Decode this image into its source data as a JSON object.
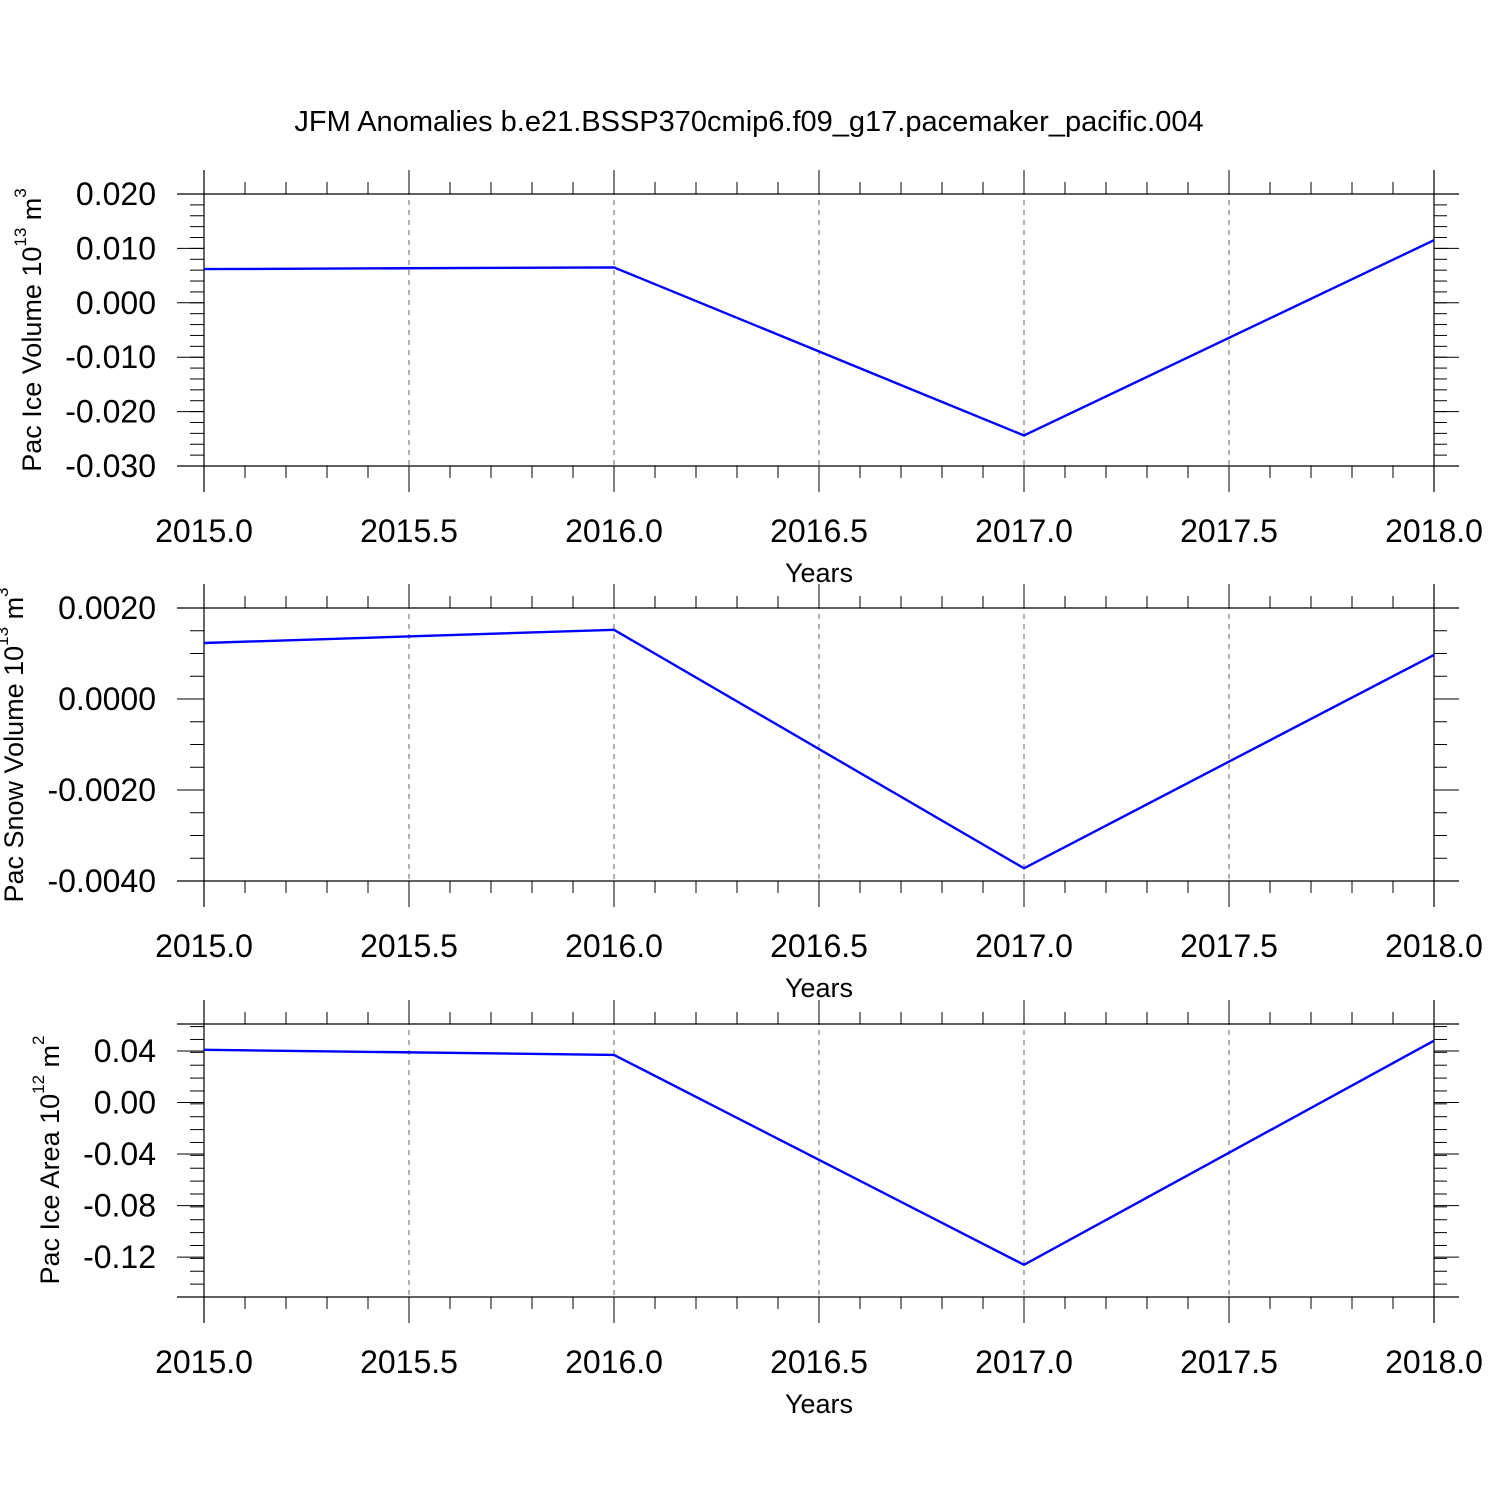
{
  "title": "JFM Anomalies b.e21.BSSP370cmip6.f09_g17.pacemaker_pacific.004",
  "colors": {
    "series": "#0000ff",
    "axis": "#000000",
    "grid": "#666666"
  },
  "chart_data": [
    {
      "type": "line",
      "xlabel": "Years",
      "ylabel": {
        "base": "Pac Ice Volume 10",
        "exp": "13",
        "unit": " m",
        "unit_exp": "3"
      },
      "x": [
        2015.0,
        2016.0,
        2017.0,
        2018.0
      ],
      "series": [
        {
          "values": [
            0.0062,
            0.0065,
            -0.0244,
            0.0115
          ]
        }
      ],
      "xlim": [
        2015.0,
        2018.0
      ],
      "ylim": [
        -0.03,
        0.02
      ],
      "xticks": [
        2015.0,
        2015.5,
        2016.0,
        2016.5,
        2017.0,
        2017.5,
        2018.0
      ],
      "xtick_labels": [
        "2015.0",
        "2015.5",
        "2016.0",
        "2016.5",
        "2017.0",
        "2017.5",
        "2018.0"
      ],
      "yticks": [
        0.02,
        0.01,
        0.0,
        -0.01,
        -0.02,
        -0.03
      ],
      "ytick_labels": [
        "0.020",
        "0.010",
        "0.000",
        "-0.010",
        "-0.020",
        "-0.030"
      ],
      "grid": "vertical dashed at x ticks"
    },
    {
      "type": "line",
      "xlabel": "Years",
      "ylabel": {
        "base": "Pac Snow Volume 10",
        "exp": "13",
        "unit": " m",
        "unit_exp": "3"
      },
      "x": [
        2015.0,
        2016.0,
        2017.0,
        2018.0
      ],
      "series": [
        {
          "values": [
            0.00123,
            0.00152,
            -0.00372,
            0.00097
          ]
        }
      ],
      "xlim": [
        2015.0,
        2018.0
      ],
      "ylim": [
        -0.004,
        0.002
      ],
      "xticks": [
        2015.0,
        2015.5,
        2016.0,
        2016.5,
        2017.0,
        2017.5,
        2018.0
      ],
      "xtick_labels": [
        "2015.0",
        "2015.5",
        "2016.0",
        "2016.5",
        "2017.0",
        "2017.5",
        "2018.0"
      ],
      "yticks": [
        0.002,
        0.0,
        -0.002,
        -0.004
      ],
      "ytick_labels": [
        "0.0020",
        "0.0000",
        "-0.0020",
        "-0.0040"
      ],
      "grid": "vertical dashed at x ticks"
    },
    {
      "type": "line",
      "xlabel": "Years",
      "ylabel": {
        "base": "Pac Ice Area 10",
        "exp": "12",
        "unit": " m",
        "unit_exp": "2"
      },
      "x": [
        2015.0,
        2016.0,
        2017.0,
        2018.0
      ],
      "series": [
        {
          "values": [
            0.041,
            0.037,
            -0.126,
            0.048
          ]
        }
      ],
      "xlim": [
        2015.0,
        2018.0
      ],
      "ylim": [
        -0.151,
        0.061
      ],
      "xticks": [
        2015.0,
        2015.5,
        2016.0,
        2016.5,
        2017.0,
        2017.5,
        2018.0
      ],
      "xtick_labels": [
        "2015.0",
        "2015.5",
        "2016.0",
        "2016.5",
        "2017.0",
        "2017.5",
        "2018.0"
      ],
      "yticks": [
        0.04,
        0.0,
        -0.04,
        -0.08,
        -0.12
      ],
      "ytick_labels": [
        "0.04",
        "0.00",
        "-0.04",
        "-0.08",
        "-0.12"
      ],
      "grid": "vertical dashed at x ticks"
    }
  ]
}
